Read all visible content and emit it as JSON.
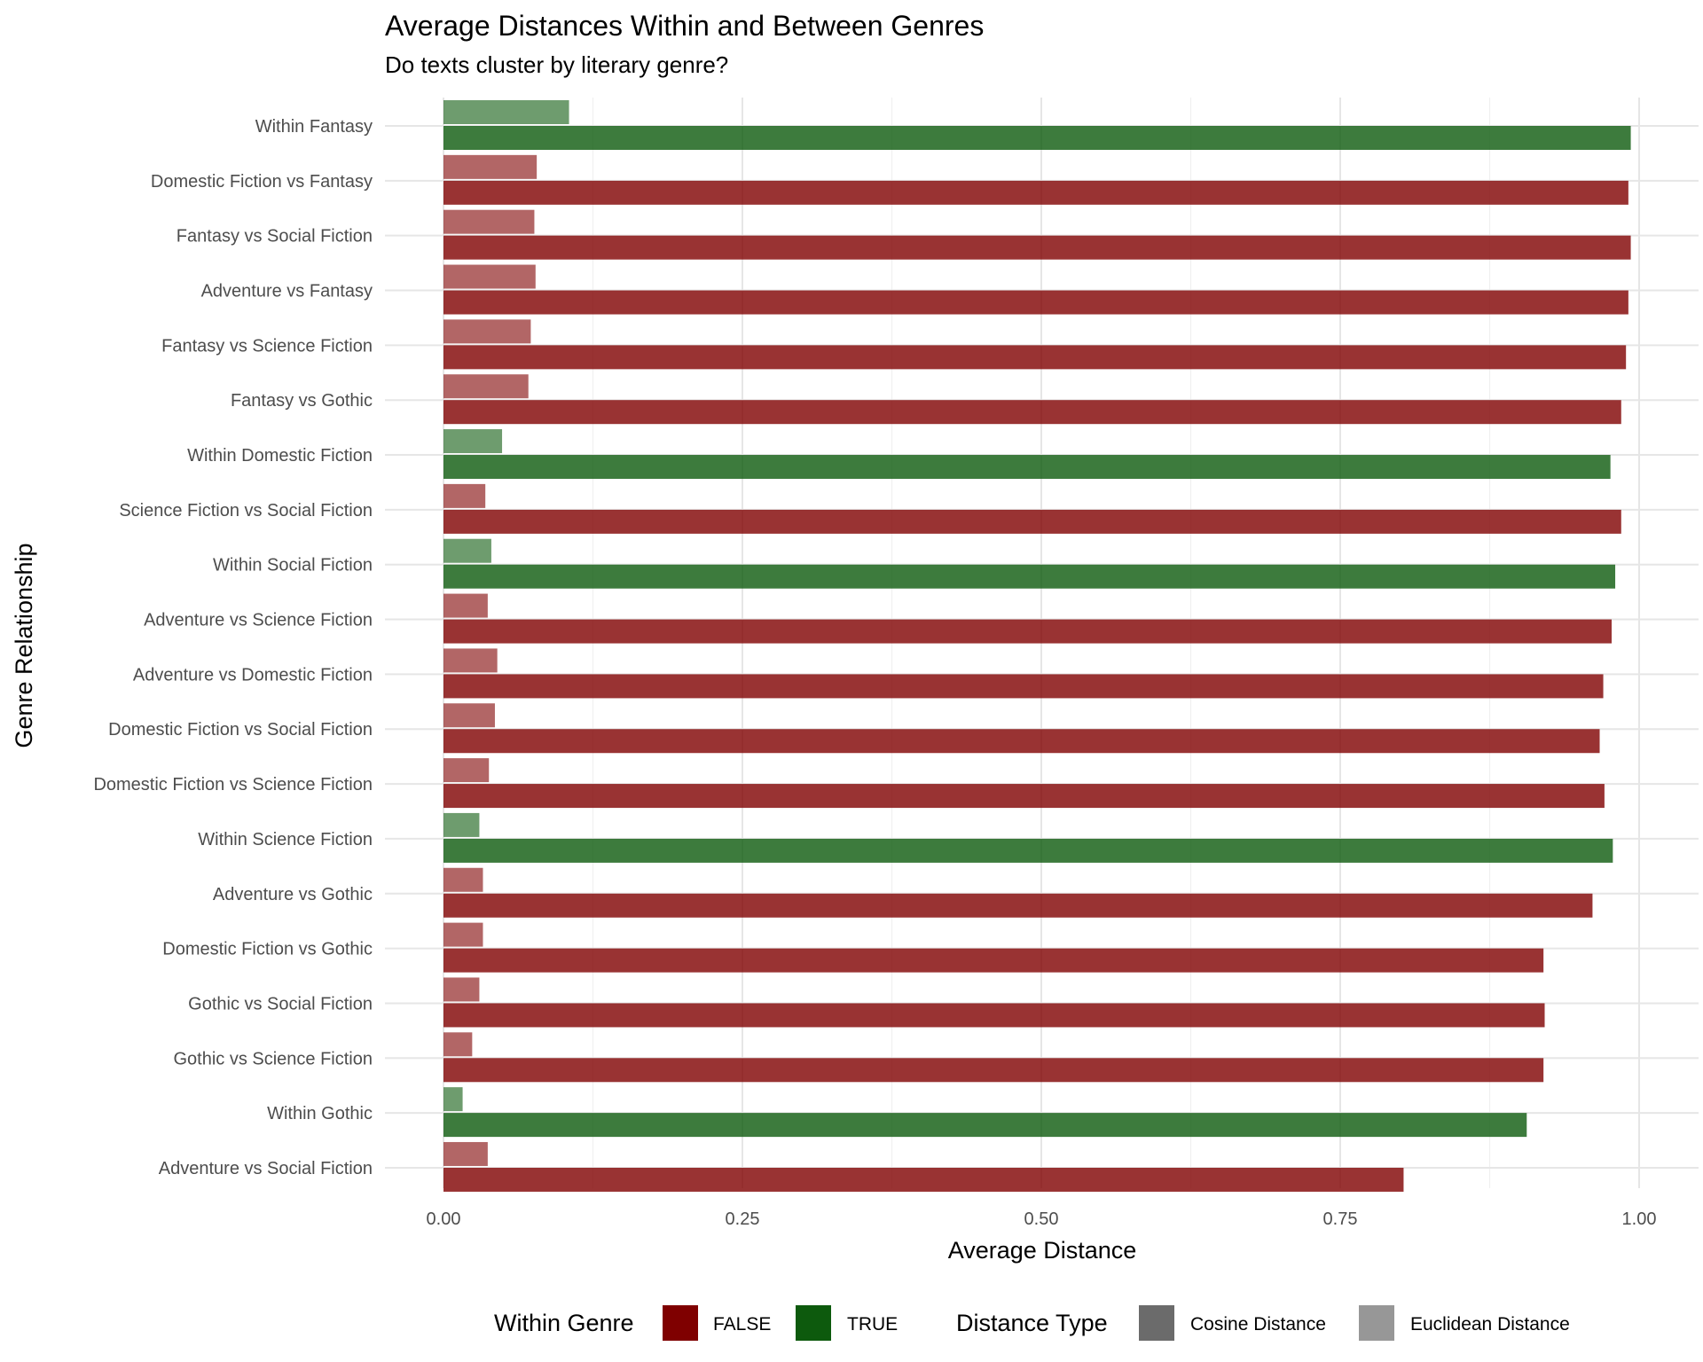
{
  "title": "Average Distances Within and Between Genres",
  "subtitle": "Do texts cluster by literary genre?",
  "colors": {
    "false": "#7f0000",
    "true": "#0d5a0d",
    "cosine_swatch": "#6b6b6b",
    "euclidean_swatch": "#979797"
  },
  "legend": {
    "fill_title": "Within Genre",
    "fill_items": [
      {
        "label": "FALSE",
        "color": "#7f0000"
      },
      {
        "label": "TRUE",
        "color": "#0d5a0d"
      }
    ],
    "alpha_title": "Distance Type",
    "alpha_items": [
      {
        "label": "Cosine Distance",
        "color": "#6b6b6b"
      },
      {
        "label": "Euclidean Distance",
        "color": "#979797"
      }
    ]
  },
  "chart_data": {
    "type": "bar",
    "orientation": "horizontal",
    "xlabel": "Average Distance",
    "ylabel": "Genre Relationship",
    "xlim": [
      0,
      1.0
    ],
    "xticks": [
      "0.00",
      "0.25",
      "0.50",
      "0.75",
      "1.00"
    ],
    "xtick_values": [
      0,
      0.25,
      0.5,
      0.75,
      1.0
    ],
    "grid": true,
    "legend_position": "bottom",
    "categories": [
      "Within Fantasy",
      "Domestic Fiction vs Fantasy",
      "Fantasy vs Social Fiction",
      "Adventure vs Fantasy",
      "Fantasy vs Science Fiction",
      "Fantasy vs Gothic",
      "Within Domestic Fiction",
      "Science Fiction vs Social Fiction",
      "Within Social Fiction",
      "Adventure vs Science Fiction",
      "Adventure vs Domestic Fiction",
      "Domestic Fiction vs Social Fiction",
      "Domestic Fiction vs Science Fiction",
      "Within Science Fiction",
      "Adventure vs Gothic",
      "Domestic Fiction vs Gothic",
      "Gothic vs Social Fiction",
      "Gothic vs Science Fiction",
      "Within Gothic",
      "Adventure vs Social Fiction"
    ],
    "within_genre": [
      true,
      false,
      false,
      false,
      false,
      false,
      true,
      false,
      true,
      false,
      false,
      false,
      false,
      true,
      false,
      false,
      false,
      false,
      true,
      false
    ],
    "series": [
      {
        "name": "Cosine Distance",
        "values": [
          0.993,
          0.991,
          0.993,
          0.991,
          0.989,
          0.985,
          0.976,
          0.985,
          0.98,
          0.977,
          0.97,
          0.967,
          0.971,
          0.978,
          0.961,
          0.92,
          0.921,
          0.92,
          0.906,
          0.803
        ]
      },
      {
        "name": "Euclidean Distance",
        "values": [
          0.105,
          0.078,
          0.076,
          0.077,
          0.073,
          0.071,
          0.049,
          0.035,
          0.04,
          0.037,
          0.045,
          0.043,
          0.038,
          0.03,
          0.033,
          0.033,
          0.03,
          0.024,
          0.016,
          0.037
        ]
      }
    ]
  }
}
